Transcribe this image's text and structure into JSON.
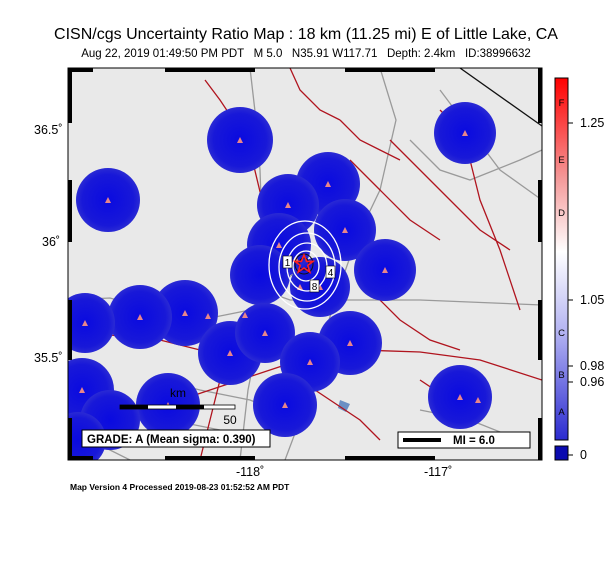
{
  "header": {
    "title": "CISN/cgs Uncertainty Ratio Map : 18 km (11.25 mi) E of Little Lake, CA",
    "subtitle": "Aug 22, 2019 01:49:50 PM PDT   M 5.0   N35.91 W117.71   Depth: 2.4km   ID:38996632"
  },
  "axes": {
    "y_ticks": [
      "36.5˚",
      "36˚",
      "35.5˚"
    ],
    "x_ticks": [
      "-118˚",
      "-117˚"
    ]
  },
  "map": {
    "scale_bar_unit": "km",
    "scale_bar_label": "50",
    "grade_label": "GRADE: A (Mean sigma: 0.390)",
    "mi_legend_label": "MI = 6.0",
    "contour_labels": [
      "1",
      "4",
      "8"
    ],
    "colors": {
      "land": "#e9e9e9",
      "uncertainty_blob": "#1a1ad6",
      "fault": "#b0141e",
      "road": "#9a9a9a",
      "water": "#6b8fc4"
    }
  },
  "colorbar": {
    "letters": [
      "F",
      "E",
      "D",
      "C",
      "B",
      "A"
    ],
    "values": [
      "1.25",
      "1.05",
      "0.98",
      "0.96",
      "0"
    ]
  },
  "footer": {
    "text": "Map Version 4 Processed 2019-08-23 01:52:52 AM PDT"
  }
}
